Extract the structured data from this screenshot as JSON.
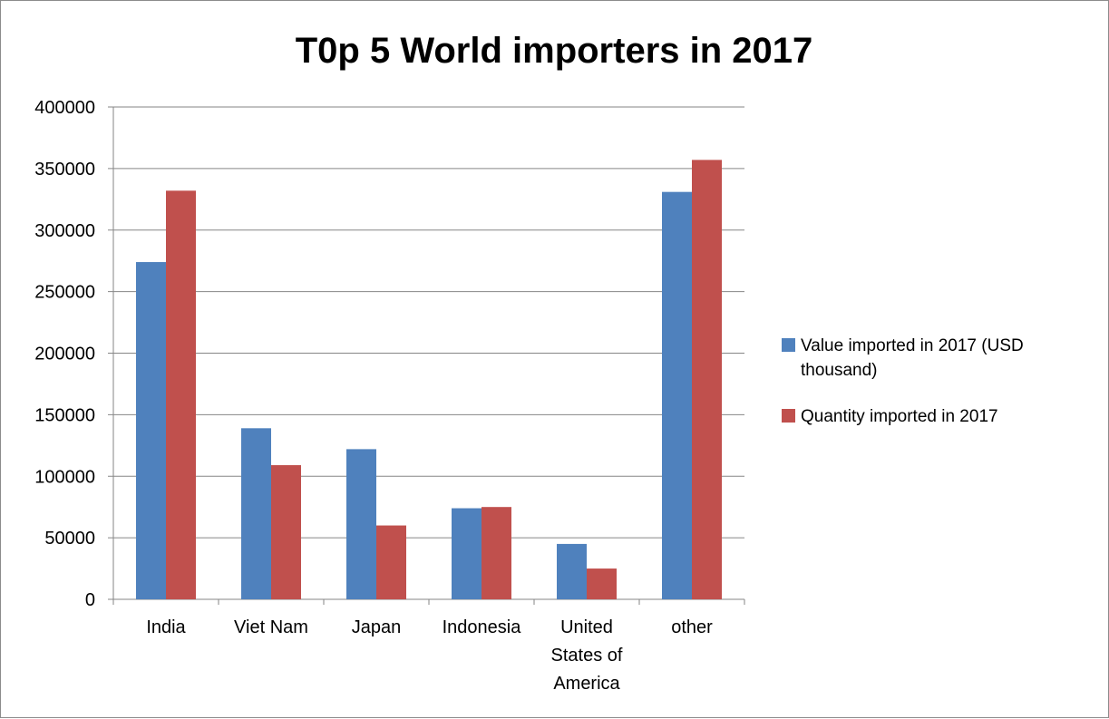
{
  "chart_data": {
    "type": "bar",
    "title": "T0p 5 World importers in 2017",
    "categories": [
      [
        "India"
      ],
      [
        "Viet Nam"
      ],
      [
        "Japan"
      ],
      [
        "Indonesia"
      ],
      [
        "United",
        "States of",
        "America"
      ],
      [
        "other"
      ]
    ],
    "series": [
      {
        "name": "Value imported in 2017 (USD thousand)",
        "legend_lines": [
          "Value imported in 2017 (USD",
          "thousand)"
        ],
        "color": "#4f81bd",
        "values": [
          274000,
          139000,
          122000,
          74000,
          45000,
          331000
        ]
      },
      {
        "name": "Quantity imported in 2017",
        "legend_lines": [
          "Quantity imported in 2017"
        ],
        "color": "#c0504d",
        "values": [
          332000,
          109000,
          60000,
          75000,
          25000,
          357000
        ]
      }
    ],
    "ylim": [
      0,
      400000
    ],
    "yticks": [
      "0",
      "50000",
      "100000",
      "150000",
      "200000",
      "250000",
      "300000",
      "350000",
      "400000"
    ],
    "grid": true,
    "legend_position": "right"
  }
}
